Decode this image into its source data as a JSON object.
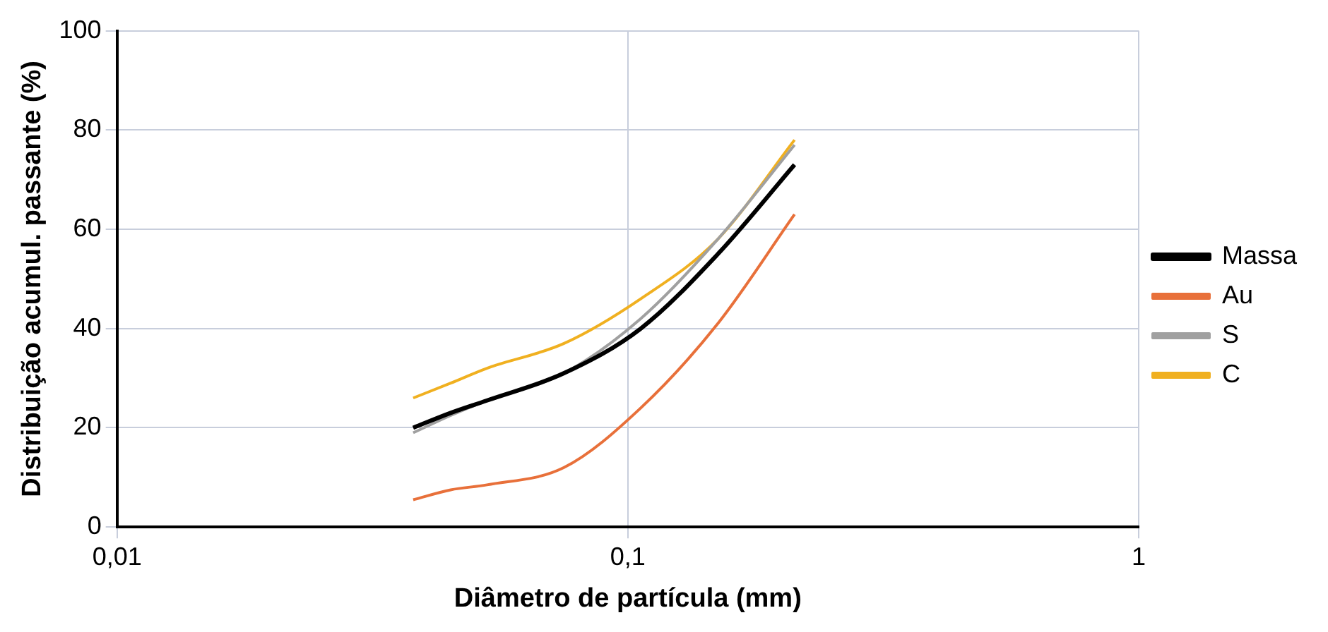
{
  "chart_data": {
    "type": "line",
    "xlabel": "Diâmetro de partícula (mm)",
    "ylabel": "Distribuição acumul. passante (%)",
    "x": [
      0.038,
      0.045,
      0.053,
      0.075,
      0.106,
      0.15,
      0.212
    ],
    "series": [
      {
        "name": "Massa",
        "color": "#000000",
        "values": [
          20,
          23,
          25.5,
          31,
          40,
          55,
          73
        ]
      },
      {
        "name": "Au",
        "color": "#e8703a",
        "values": [
          5.5,
          7.5,
          8.5,
          12,
          24,
          41,
          63
        ]
      },
      {
        "name": "S",
        "color": "#a0a0a0",
        "values": [
          19,
          22.5,
          25.5,
          31,
          42,
          58,
          77
        ]
      },
      {
        "name": "C",
        "color": "#f0b020",
        "values": [
          26,
          29,
          32,
          37,
          46,
          58,
          78
        ]
      }
    ],
    "log": "x",
    "xlim": [
      0.01,
      1
    ],
    "xticks": [
      {
        "value": 0.01,
        "label": "0,01"
      },
      {
        "value": 0.1,
        "label": "0,1"
      },
      {
        "value": 1,
        "label": "1"
      }
    ],
    "ylim": [
      0,
      100
    ],
    "yticks": [
      0,
      20,
      40,
      60,
      80,
      100
    ],
    "grid": true,
    "legend": "right",
    "marker": "none",
    "line_style": "solid"
  }
}
